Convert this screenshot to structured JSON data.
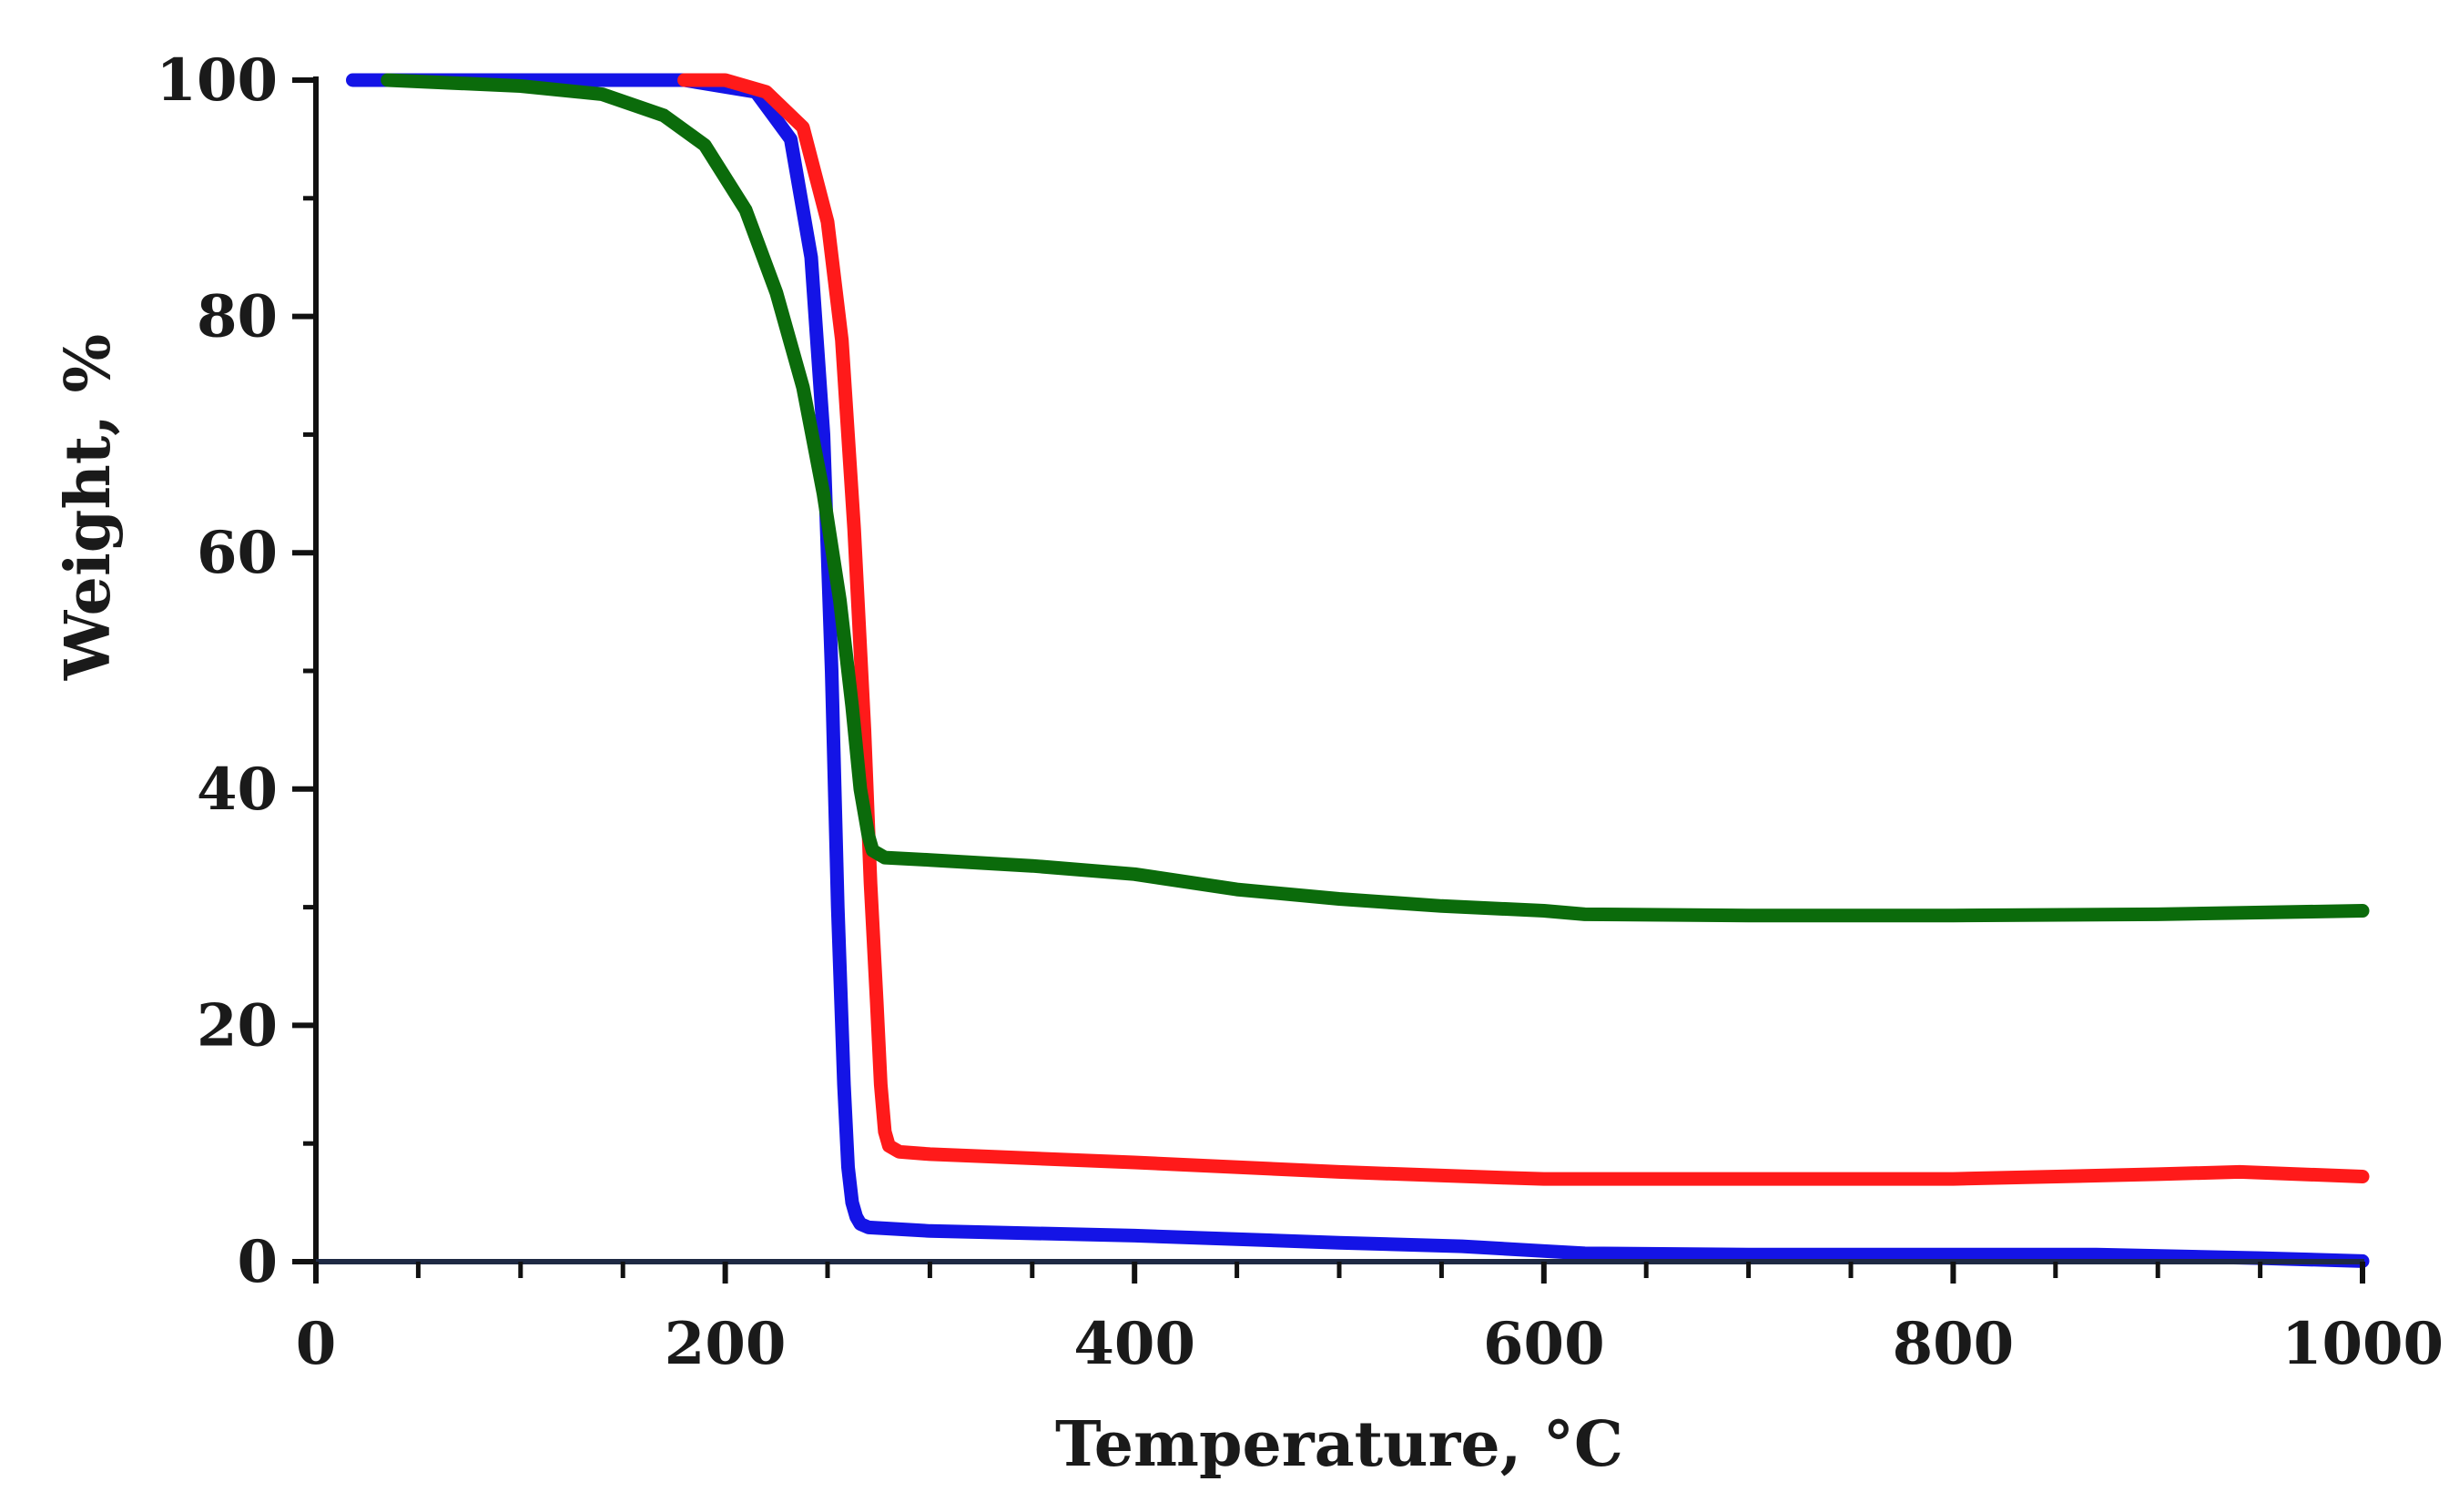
{
  "chart_data": {
    "type": "line",
    "title": "",
    "xlabel": "Temperature, °C",
    "ylabel": "Weight, %",
    "xlim": [
      0,
      1000
    ],
    "ylim": [
      0,
      100
    ],
    "x_ticks": [
      "0",
      "200",
      "400",
      "600",
      "800",
      "1000"
    ],
    "y_ticks": [
      "0",
      "20",
      "40",
      "60",
      "80",
      "100"
    ],
    "grid": false,
    "legend": "none",
    "series": [
      {
        "name": "blue",
        "color": "#1414e6",
        "x": [
          18,
          100,
          180,
          215,
          232,
          242,
          248,
          252,
          255,
          258,
          260,
          262,
          264,
          266,
          270,
          300,
          400,
          500,
          560,
          600,
          620,
          700,
          800,
          870,
          950,
          1000
        ],
        "y": [
          100,
          100,
          100,
          99,
          95,
          85,
          70,
          50,
          30,
          15,
          8,
          5,
          3.8,
          3.2,
          2.9,
          2.6,
          2.2,
          1.6,
          1.3,
          0.9,
          0.7,
          0.6,
          0.6,
          0.6,
          0.3,
          0.05
        ]
      },
      {
        "name": "red",
        "color": "#ff1a1a",
        "x": [
          180,
          200,
          220,
          238,
          250,
          257,
          263,
          268,
          271,
          274,
          276,
          278,
          280,
          285,
          300,
          400,
          500,
          580,
          600,
          700,
          800,
          900,
          940,
          1000
        ],
        "y": [
          100,
          100,
          99,
          96,
          88,
          78,
          62,
          45,
          32,
          22,
          15,
          11,
          9.8,
          9.3,
          9.1,
          8.4,
          7.6,
          7.1,
          7.0,
          7.0,
          7.0,
          7.4,
          7.6,
          7.2
        ]
      },
      {
        "name": "green",
        "color": "#0b6b0b",
        "x": [
          35,
          100,
          140,
          170,
          190,
          210,
          225,
          238,
          248,
          256,
          262,
          266,
          270,
          272,
          278,
          300,
          350,
          400,
          450,
          500,
          550,
          600,
          620,
          700,
          800,
          900,
          1000
        ],
        "y": [
          100,
          99.5,
          98.8,
          97,
          94.5,
          89,
          82,
          74,
          65,
          56,
          47,
          40,
          36,
          34.8,
          34.2,
          34.0,
          33.5,
          32.8,
          31.5,
          30.7,
          30.1,
          29.7,
          29.4,
          29.3,
          29.3,
          29.4,
          29.7
        ]
      }
    ]
  }
}
